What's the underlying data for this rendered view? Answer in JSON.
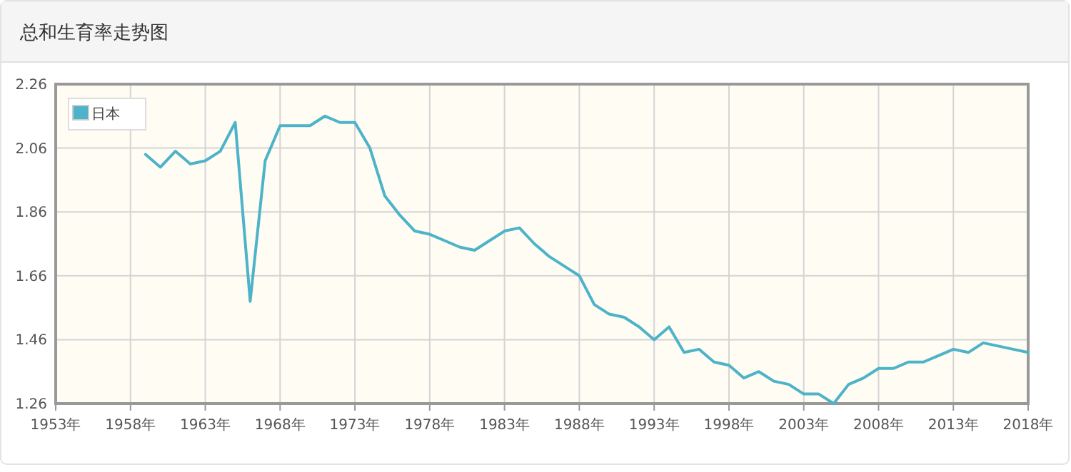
{
  "chart_data": {
    "type": "line",
    "title": "总和生育率走势图",
    "x": [
      1959,
      1960,
      1961,
      1962,
      1963,
      1964,
      1965,
      1966,
      1967,
      1968,
      1969,
      1970,
      1971,
      1972,
      1973,
      1974,
      1975,
      1976,
      1977,
      1978,
      1979,
      1980,
      1981,
      1982,
      1983,
      1984,
      1985,
      1986,
      1987,
      1988,
      1989,
      1990,
      1991,
      1992,
      1993,
      1994,
      1995,
      1996,
      1997,
      1998,
      1999,
      2000,
      2001,
      2002,
      2003,
      2004,
      2005,
      2006,
      2007,
      2008,
      2009,
      2010,
      2011,
      2012,
      2013,
      2014,
      2015,
      2016,
      2017,
      2018
    ],
    "series": [
      {
        "name": "日本",
        "color": "#4db3c8",
        "values": [
          2.04,
          2.0,
          2.05,
          2.01,
          2.02,
          2.05,
          2.14,
          1.58,
          2.02,
          2.13,
          2.13,
          2.13,
          2.16,
          2.14,
          2.14,
          2.06,
          1.91,
          1.85,
          1.8,
          1.79,
          1.77,
          1.75,
          1.74,
          1.77,
          1.8,
          1.81,
          1.76,
          1.72,
          1.69,
          1.66,
          1.57,
          1.54,
          1.53,
          1.5,
          1.46,
          1.5,
          1.42,
          1.43,
          1.39,
          1.38,
          1.34,
          1.36,
          1.33,
          1.32,
          1.29,
          1.29,
          1.26,
          1.32,
          1.34,
          1.37,
          1.37,
          1.39,
          1.39,
          1.41,
          1.43,
          1.42,
          1.45,
          1.44,
          1.43,
          1.42
        ]
      }
    ],
    "xlim": [
      1953,
      2018
    ],
    "xticks": [
      {
        "value": 1953,
        "label": "1953年"
      },
      {
        "value": 1958,
        "label": "1958年"
      },
      {
        "value": 1963,
        "label": "1963年"
      },
      {
        "value": 1968,
        "label": "1968年"
      },
      {
        "value": 1973,
        "label": "1973年"
      },
      {
        "value": 1978,
        "label": "1978年"
      },
      {
        "value": 1983,
        "label": "1983年"
      },
      {
        "value": 1988,
        "label": "1988年"
      },
      {
        "value": 1993,
        "label": "1993年"
      },
      {
        "value": 1998,
        "label": "1998年"
      },
      {
        "value": 2003,
        "label": "2003年"
      },
      {
        "value": 2008,
        "label": "2008年"
      },
      {
        "value": 2013,
        "label": "2013年"
      },
      {
        "value": 2018,
        "label": "2018年"
      }
    ],
    "ylim": [
      1.26,
      2.26
    ],
    "yticks": [
      1.26,
      1.46,
      1.66,
      1.86,
      2.06,
      2.26
    ],
    "grid": true,
    "legend": "top left",
    "marker": "none",
    "line_style": "solid"
  }
}
